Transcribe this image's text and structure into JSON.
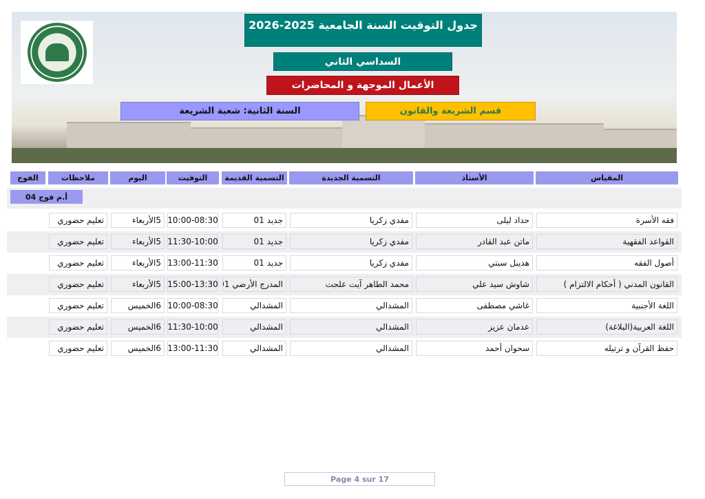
{
  "header": {
    "title": "جدول التوقيت السنة الجامعية 2025-2026",
    "semester": "السداسي الثاني",
    "session_type": "الأعمال الموجهة و المحاضرات",
    "year_branch": "السنة الثانية:  شعبة الشريعة",
    "department": "قسم الشريعة والقانون",
    "colors": {
      "title": "#00807a",
      "semester": "#00807a",
      "session_type": "#c0141c",
      "year_branch": "#9999ff",
      "department": "#ffc000"
    }
  },
  "logo": {
    "icon": "university-seal-logo"
  },
  "table": {
    "columns": [
      "المقياس",
      "الأستاذ",
      "التسمية الجديدة",
      "التسمية القديمة",
      "التوقيت",
      "اليوم",
      "ملاحظات",
      "الفوج"
    ],
    "group": "أ.م فوج 04",
    "rows": [
      {
        "module": "فقه الأسرة",
        "teacher": "حداد ليلى",
        "new_room": "مفدي زكريا",
        "old_room": "جديد 01",
        "time": "10:00-08:30",
        "day": "5الأربعاء",
        "notes": "تعليم حضوري"
      },
      {
        "module": "القواعد الفقهية",
        "teacher": "ماتن عبد القادر",
        "new_room": "مفدي زكريا",
        "old_room": "جديد 01",
        "time": "11:30-10:00",
        "day": "5الأربعاء",
        "notes": "تعليم حضوري"
      },
      {
        "module": "أصول الفقه",
        "teacher": "هديبل سبتي",
        "new_room": "مفدي زكريا",
        "old_room": "جديد 01",
        "time": "13:00-11:30",
        "day": "5الأربعاء",
        "notes": "تعليم حضوري"
      },
      {
        "module": "القانون المدني ( أحكام الالتزام )",
        "teacher": "شاوش  سيد علي",
        "new_room": "محمد الطاهر آيت علجت",
        "old_room": "المدرج الأرضي  01",
        "time": "15:00-13:30",
        "day": "5الأربعاء",
        "notes": "تعليم حضوري"
      },
      {
        "module": "اللغة الأجنبية",
        "teacher": "غاشي مصطفى",
        "new_room": "المشدالي",
        "old_room": "المشدالي",
        "time": "10:00-08:30",
        "day": "6الخميس",
        "notes": "تعليم حضوري"
      },
      {
        "module": "اللغة العربية(البلاغة)",
        "teacher": "عدمان عزيز",
        "new_room": "المشدالي",
        "old_room": "المشدالي",
        "time": "11:30-10:00",
        "day": "6الخميس",
        "notes": "تعليم حضوري"
      },
      {
        "module": "حفظ القرآن و ترتيله",
        "teacher": "سحوان أحمد",
        "new_room": "المشدالي",
        "old_room": "المشدالي",
        "time": "13:00-11:30",
        "day": "6الخميس",
        "notes": "تعليم حضوري"
      }
    ]
  },
  "footer": {
    "page": "Page 4 sur 17"
  }
}
